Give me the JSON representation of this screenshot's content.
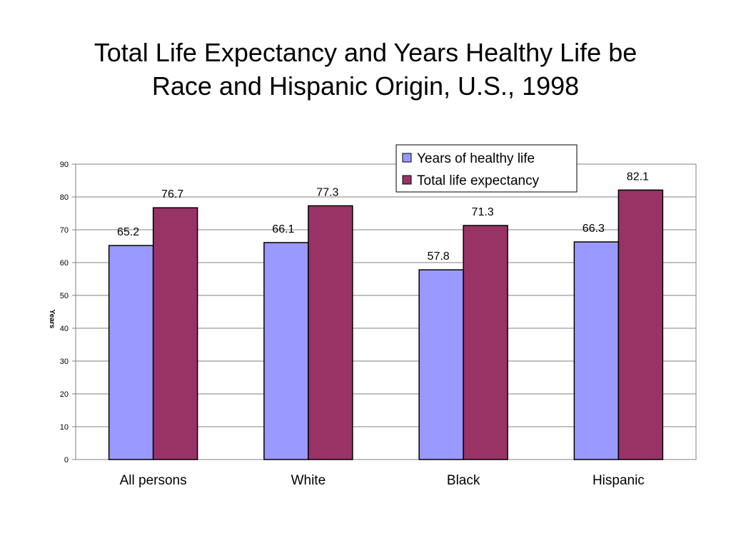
{
  "title_line1": "Total Life Expectancy and Years Healthy Life be",
  "title_line2": "Race and Hispanic Origin, U.S., 1998",
  "chart_data": {
    "type": "bar",
    "categories": [
      "All persons",
      "White",
      "Black",
      "Hispanic"
    ],
    "series": [
      {
        "name": "Years of healthy life",
        "values": [
          65.2,
          66.1,
          57.8,
          66.3
        ],
        "color": "#9999ff"
      },
      {
        "name": "Total life expectancy",
        "values": [
          76.7,
          77.3,
          71.3,
          82.1
        ],
        "color": "#993366"
      }
    ],
    "ylabel": "Years",
    "ylim": [
      0,
      90
    ],
    "yticks": [
      "0",
      "10",
      "20",
      "30",
      "40",
      "50",
      "60",
      "70",
      "80",
      "90"
    ],
    "grid": true,
    "legend": "top-right"
  }
}
